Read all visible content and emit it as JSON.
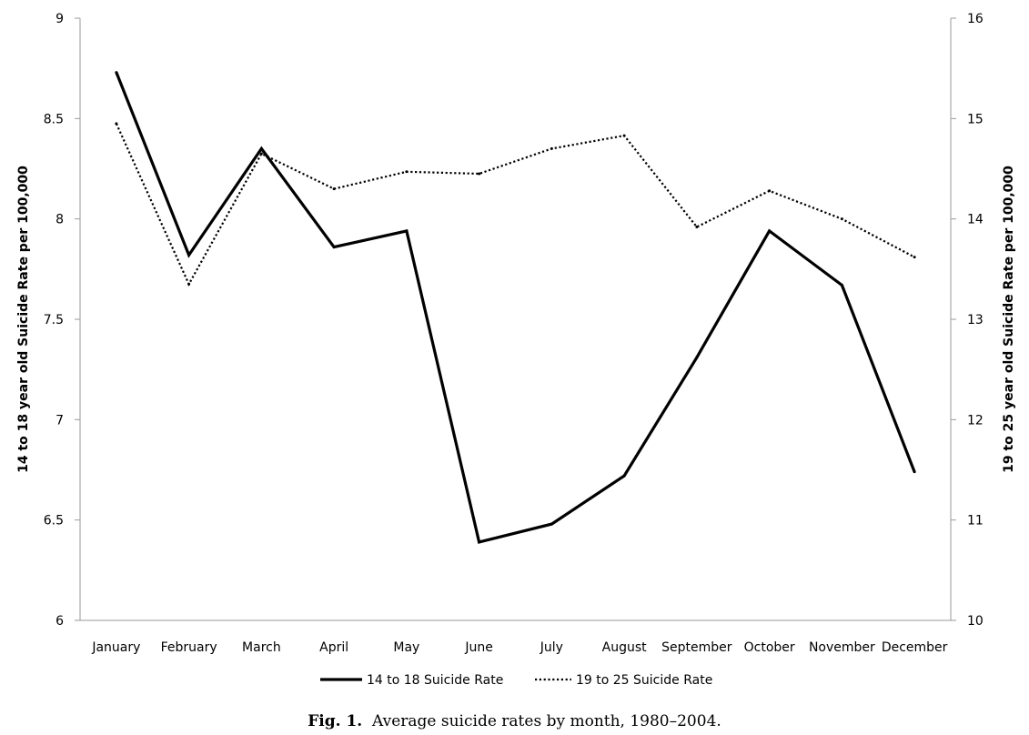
{
  "chart_data": {
    "type": "line",
    "categories": [
      "January",
      "February",
      "March",
      "April",
      "May",
      "June",
      "July",
      "August",
      "September",
      "October",
      "November",
      "December"
    ],
    "series": [
      {
        "name": "14 to 18 Suicide Rate",
        "axis": "left",
        "style": "solid",
        "values": [
          8.73,
          7.82,
          8.35,
          7.86,
          7.94,
          6.39,
          6.48,
          6.72,
          7.31,
          7.94,
          7.67,
          6.74
        ]
      },
      {
        "name": "19 to 25 Suicide Rate",
        "axis": "right",
        "style": "dotted",
        "values": [
          14.95,
          13.35,
          14.65,
          14.3,
          14.47,
          14.45,
          14.7,
          14.83,
          13.92,
          14.28,
          14.0,
          13.62
        ]
      }
    ],
    "y_left": {
      "label": "14 to 18 year old Suicide Rate per 100,000",
      "lim": [
        6,
        9
      ],
      "ticks": [
        "6",
        "6.5",
        "7",
        "7.5",
        "8",
        "8.5",
        "9"
      ]
    },
    "y_right": {
      "label": "19 to 25 year old Suicide Rate per 100,000",
      "lim": [
        10,
        16
      ],
      "ticks": [
        "10",
        "11",
        "12",
        "13",
        "14",
        "15",
        "16"
      ]
    },
    "legend_position": "bottom",
    "grid": false
  },
  "caption": {
    "label": "Fig. 1.",
    "text": "Average suicide rates by month, 1980–2004."
  }
}
